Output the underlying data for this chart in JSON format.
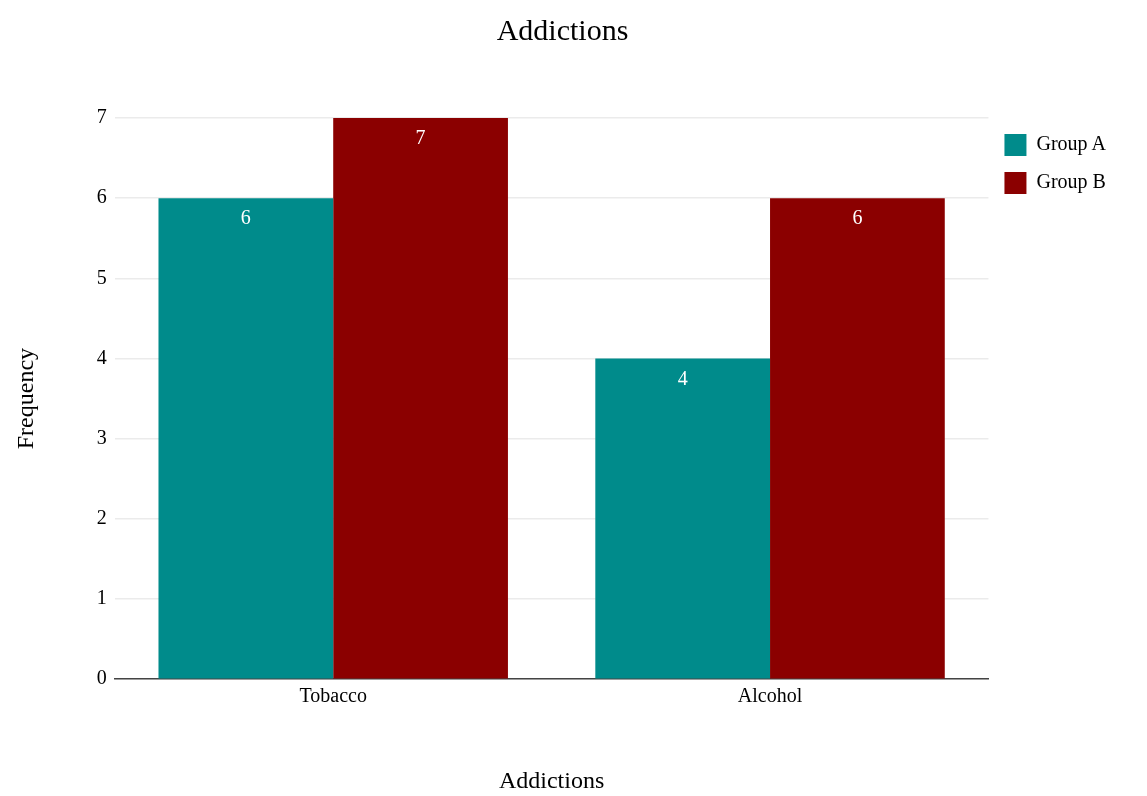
{
  "chart_data": {
    "type": "bar",
    "title": "Addictions",
    "xlabel": "Addictions",
    "ylabel": "Frequency",
    "categories": [
      "Tobacco",
      "Alcohol"
    ],
    "series": [
      {
        "name": "Group A",
        "color": "#008b8b",
        "values": [
          6,
          4
        ]
      },
      {
        "name": "Group B",
        "color": "#8b0000",
        "values": [
          7,
          6
        ]
      }
    ],
    "ylim": [
      0,
      7
    ],
    "yticks": [
      0,
      1,
      2,
      3,
      4,
      5,
      6,
      7
    ],
    "grid": "y",
    "legend": "top right",
    "data_labels": true
  }
}
